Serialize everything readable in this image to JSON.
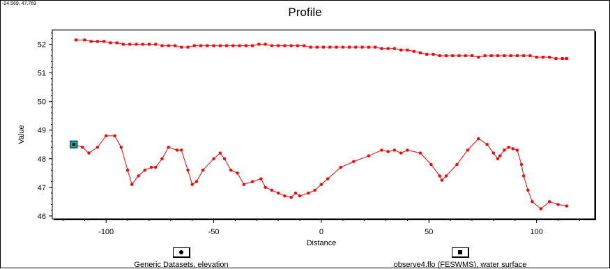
{
  "coordinate_readout": "-24.569, 47.769",
  "chart_data": {
    "type": "line",
    "title": "Profile",
    "xlabel": "Distance",
    "ylabel": "Value",
    "xlim": [
      -125,
      127
    ],
    "ylim": [
      45.9,
      52.5
    ],
    "xticks": [
      -100,
      -50,
      0,
      50,
      100
    ],
    "yticks": [
      46,
      47,
      48,
      49,
      50,
      51,
      52
    ],
    "grid": false,
    "legend_position": "bottom",
    "series": [
      {
        "name": "Generic Datasets, elevation",
        "marker": "circle",
        "color": "#ff0000",
        "x": [
          -115,
          -111,
          -108,
          -104,
          -100,
          -96,
          -93,
          -90,
          -88,
          -85,
          -82,
          -79,
          -77,
          -74,
          -71,
          -67,
          -65,
          -62,
          -60,
          -58,
          -55,
          -50,
          -47,
          -45,
          -42,
          -39,
          -36,
          -32,
          -28,
          -26,
          -23,
          -20,
          -17,
          -14,
          -12,
          -10,
          -6,
          -3,
          0,
          3,
          9,
          15,
          22,
          28,
          31,
          34,
          37,
          40,
          46,
          51,
          55,
          56,
          58,
          63,
          68,
          73,
          77,
          80,
          82,
          83,
          85,
          87,
          89,
          91,
          93,
          94,
          96,
          98,
          102,
          106,
          110,
          114
        ],
        "y": [
          48.5,
          48.4,
          48.2,
          48.4,
          48.8,
          48.8,
          48.4,
          47.6,
          47.1,
          47.4,
          47.6,
          47.7,
          47.7,
          48.0,
          48.4,
          48.3,
          48.3,
          47.6,
          47.1,
          47.2,
          47.6,
          48.0,
          48.2,
          48.0,
          47.6,
          47.5,
          47.1,
          47.2,
          47.3,
          47.0,
          46.9,
          46.8,
          46.7,
          46.65,
          46.8,
          46.7,
          46.8,
          46.9,
          47.1,
          47.3,
          47.7,
          47.9,
          48.1,
          48.3,
          48.25,
          48.3,
          48.2,
          48.3,
          48.2,
          47.8,
          47.4,
          47.25,
          47.4,
          47.8,
          48.3,
          48.7,
          48.5,
          48.2,
          48.0,
          48.1,
          48.3,
          48.4,
          48.35,
          48.3,
          47.8,
          47.4,
          46.9,
          46.5,
          46.25,
          46.5,
          46.4,
          46.35
        ]
      },
      {
        "name": "observe4.flo (FESWMS), water surface",
        "marker": "square",
        "color": "#ff0000",
        "x": [
          -114,
          -110,
          -107,
          -104,
          -101,
          -98,
          -95,
          -92,
          -89,
          -86,
          -83,
          -80,
          -77,
          -74,
          -71,
          -68,
          -65,
          -62,
          -59,
          -56,
          -53,
          -50,
          -47,
          -44,
          -41,
          -38,
          -35,
          -32,
          -29,
          -26,
          -23,
          -20,
          -17,
          -14,
          -11,
          -8,
          -5,
          -2,
          1,
          4,
          7,
          10,
          13,
          16,
          19,
          22,
          25,
          28,
          31,
          34,
          37,
          40,
          43,
          46,
          49,
          52,
          55,
          58,
          61,
          64,
          67,
          70,
          73,
          76,
          79,
          82,
          85,
          88,
          91,
          94,
          97,
          100,
          103,
          106,
          109,
          112,
          114
        ],
        "y": [
          52.15,
          52.15,
          52.1,
          52.1,
          52.1,
          52.05,
          52.05,
          52.0,
          52.0,
          52.0,
          52.0,
          52.0,
          52.0,
          51.95,
          51.95,
          51.95,
          51.9,
          51.9,
          51.95,
          51.95,
          51.95,
          51.95,
          51.95,
          51.95,
          51.95,
          51.95,
          51.95,
          51.95,
          52.0,
          52.0,
          51.95,
          51.95,
          51.95,
          51.95,
          51.95,
          51.95,
          51.9,
          51.9,
          51.9,
          51.9,
          51.9,
          51.9,
          51.9,
          51.9,
          51.9,
          51.9,
          51.9,
          51.85,
          51.85,
          51.85,
          51.8,
          51.8,
          51.75,
          51.7,
          51.65,
          51.65,
          51.6,
          51.6,
          51.6,
          51.6,
          51.6,
          51.6,
          51.55,
          51.6,
          51.6,
          51.6,
          51.6,
          51.6,
          51.6,
          51.6,
          51.6,
          51.55,
          51.55,
          51.55,
          51.5,
          51.5,
          51.5
        ]
      }
    ],
    "annotations": [
      {
        "type": "selected-point-marker",
        "x": -115,
        "y": 48.5,
        "color": "#00b0b0"
      }
    ]
  }
}
